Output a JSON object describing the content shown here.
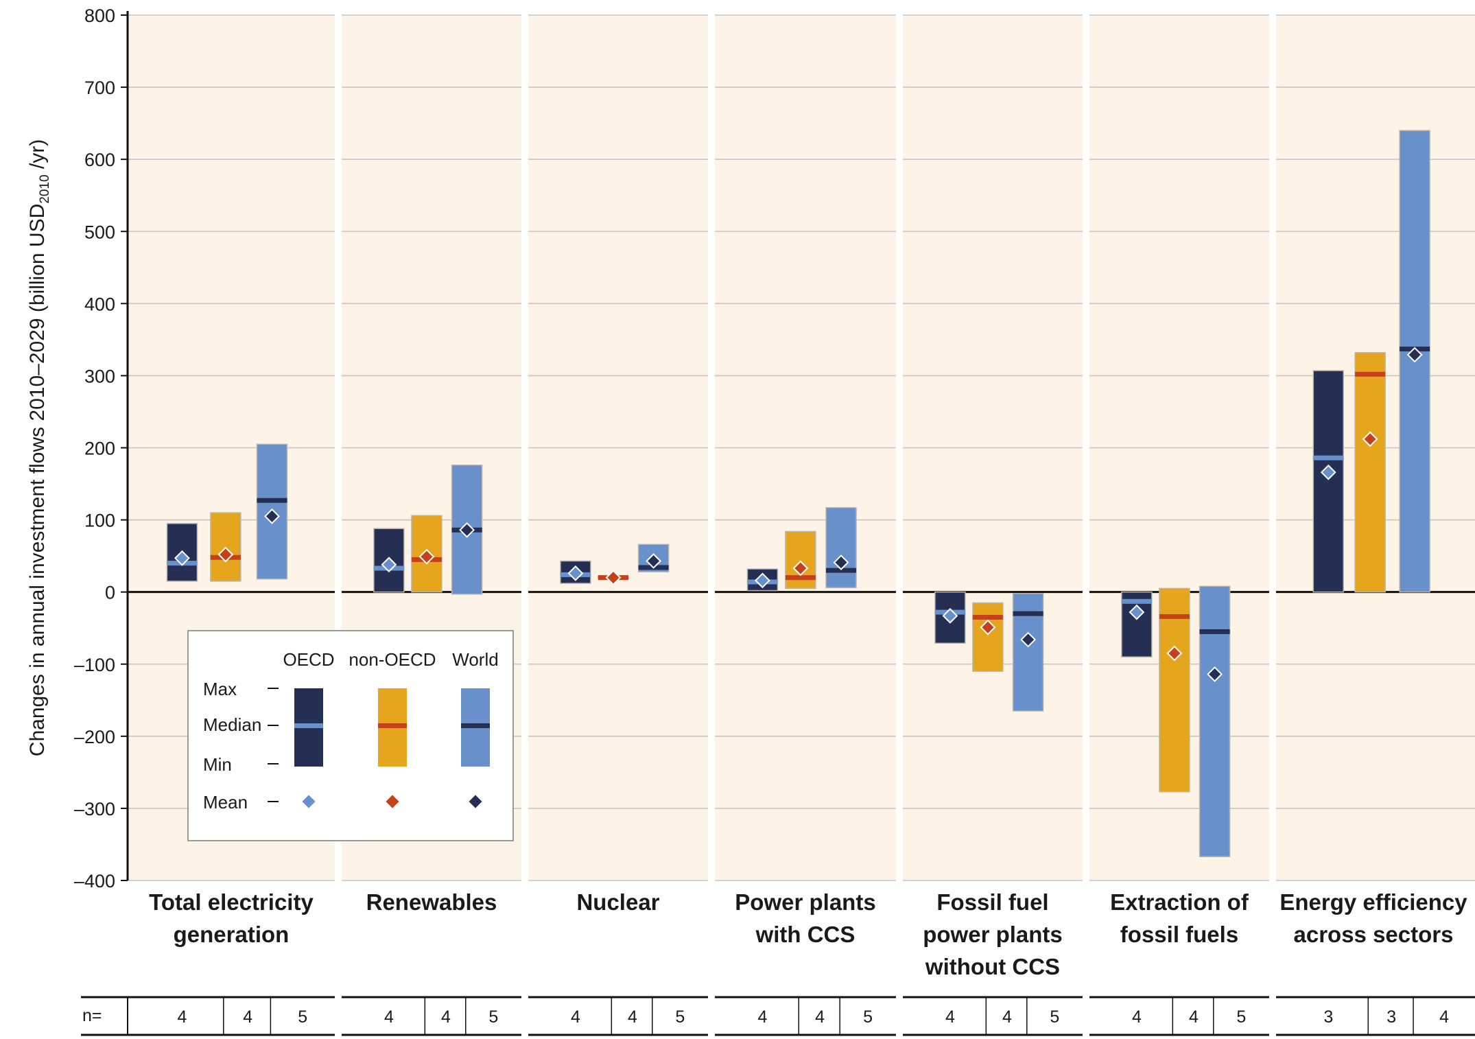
{
  "chart_data": {
    "type": "bar",
    "subtype": "floating range bars with median line and mean marker",
    "ylabel": "Changes in annual investment flows 2010–2029 (billion USD",
    "ylabel_sub": "2010",
    "ylabel_end": "/yr)",
    "ylim": [
      -400,
      800
    ],
    "yticks": [
      800,
      700,
      600,
      500,
      400,
      300,
      200,
      100,
      0,
      -100,
      -200,
      -300,
      -400
    ],
    "ytick_labels": [
      "800",
      "700",
      "600",
      "500",
      "400",
      "300",
      "200",
      "100",
      "0",
      "–100",
      "–200",
      "–300",
      "–400"
    ],
    "grid": true,
    "colors": {
      "panel_bg": "#fdf3e6",
      "OECD": "#252f54",
      "non-OECD": "#e5a61e",
      "World": "#6890cb",
      "median_OECD": "#6890cb",
      "median_non-OECD": "#c4411a",
      "median_World": "#252f54",
      "mean_OECD": "#6890cb",
      "mean_non-OECD": "#c4411a",
      "mean_World": "#252f54"
    },
    "series_names": [
      "OECD",
      "non-OECD",
      "World"
    ],
    "categories": [
      {
        "label": [
          "Total electricity",
          "generation"
        ],
        "groups": [
          {
            "series": "OECD",
            "min": 15,
            "max": 95,
            "median": 40,
            "mean": 47,
            "n": "4"
          },
          {
            "series": "non-OECD",
            "min": 15,
            "max": 110,
            "median": 48,
            "mean": 52,
            "n": "4"
          },
          {
            "series": "World",
            "min": 18,
            "max": 205,
            "median": 127,
            "mean": 105,
            "n": "5"
          }
        ]
      },
      {
        "label": [
          "Renewables"
        ],
        "groups": [
          {
            "series": "OECD",
            "min": 0,
            "max": 88,
            "median": 33,
            "mean": 38,
            "n": "4"
          },
          {
            "series": "non-OECD",
            "min": 0,
            "max": 106,
            "median": 45,
            "mean": 49,
            "n": "4"
          },
          {
            "series": "World",
            "min": -3,
            "max": 176,
            "median": 86,
            "mean": 86,
            "n": "5"
          }
        ]
      },
      {
        "label": [
          "Nuclear"
        ],
        "groups": [
          {
            "series": "OECD",
            "min": 12,
            "max": 43,
            "median": 24,
            "mean": 26,
            "n": "4"
          },
          {
            "series": "non-OECD",
            "min": 18,
            "max": 22,
            "median": 20,
            "mean": 20,
            "n": "4"
          },
          {
            "series": "World",
            "min": 28,
            "max": 66,
            "median": 34,
            "mean": 43,
            "n": "5"
          }
        ]
      },
      {
        "label": [
          "Power plants",
          "with CCS"
        ],
        "groups": [
          {
            "series": "OECD",
            "min": 2,
            "max": 32,
            "median": 14,
            "mean": 16,
            "n": "4"
          },
          {
            "series": "non-OECD",
            "min": 5,
            "max": 84,
            "median": 20,
            "mean": 33,
            "n": "4"
          },
          {
            "series": "World",
            "min": 6,
            "max": 117,
            "median": 30,
            "mean": 41,
            "n": "5"
          }
        ]
      },
      {
        "label": [
          "Fossil fuel",
          "power plants",
          "without CCS"
        ],
        "groups": [
          {
            "series": "OECD",
            "min": -71,
            "max": 0,
            "median": -28,
            "mean": -33,
            "n": "4"
          },
          {
            "series": "non-OECD",
            "min": -110,
            "max": -15,
            "median": -35,
            "mean": -49,
            "n": "4"
          },
          {
            "series": "World",
            "min": -165,
            "max": -2,
            "median": -30,
            "mean": -66,
            "n": "5"
          }
        ]
      },
      {
        "label": [
          "Extraction of",
          "fossil fuels"
        ],
        "groups": [
          {
            "series": "OECD",
            "min": -90,
            "max": 0,
            "median": -13,
            "mean": -28,
            "n": "4"
          },
          {
            "series": "non-OECD",
            "min": -277,
            "max": 5,
            "median": -34,
            "mean": -85,
            "n": "4"
          },
          {
            "series": "World",
            "min": -367,
            "max": 8,
            "median": -55,
            "mean": -114,
            "n": "5"
          }
        ]
      },
      {
        "label": [
          "Energy efficiency",
          "across sectors"
        ],
        "groups": [
          {
            "series": "OECD",
            "min": 0,
            "max": 307,
            "median": 186,
            "mean": 166,
            "n": "3"
          },
          {
            "series": "non-OECD",
            "min": 0,
            "max": 332,
            "median": 302,
            "mean": 212,
            "n": "3"
          },
          {
            "series": "World",
            "min": 0,
            "max": 640,
            "median": 337,
            "mean": 329,
            "n": "4"
          }
        ]
      }
    ],
    "n_label": "n=",
    "legend": {
      "placement": "lower-left inside first panels",
      "series_labels": [
        "OECD",
        "non-OECD",
        "World"
      ],
      "row_labels": [
        "Max",
        "Median",
        "Min",
        "Mean"
      ]
    }
  }
}
